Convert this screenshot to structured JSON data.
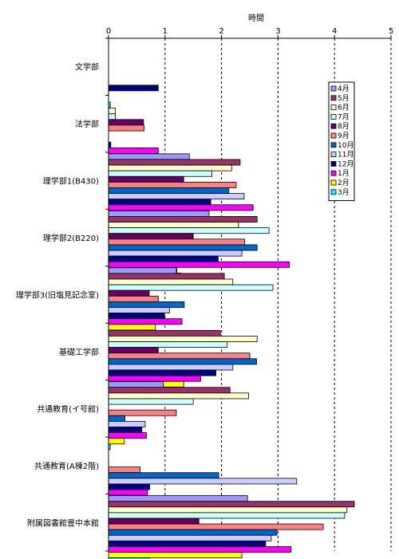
{
  "chart_data": {
    "type": "bar",
    "orientation": "horizontal",
    "title": "時間",
    "xlim": [
      0,
      5
    ],
    "xticks": [
      "0",
      "1",
      "2",
      "3",
      "4",
      "5"
    ],
    "grid": "vertical dashed",
    "legend_position": "right",
    "categories": [
      "文学部",
      "法学部",
      "理学部1(B430)",
      "理学部2(B220)",
      "理学部3(旧塩見記念室)",
      "基礎工学部",
      "共通教育(イ号館)",
      "共通教育(A棟2階)",
      "附属図書館豊中本館"
    ],
    "series": [
      {
        "name": "4月",
        "color": "#9999ff",
        "values": [
          0,
          0,
          1.43,
          1.78,
          1.2,
          0,
          0.97,
          0,
          2.46
        ]
      },
      {
        "name": "5月",
        "color": "#993366",
        "values": [
          0,
          0,
          2.33,
          2.63,
          2.05,
          1.98,
          2.15,
          0,
          4.35
        ]
      },
      {
        "name": "6月",
        "color": "#ffffcc",
        "values": [
          0,
          0.12,
          2.18,
          2.3,
          2.2,
          2.63,
          2.48,
          0,
          4.22
        ]
      },
      {
        "name": "7月",
        "color": "#ccffff",
        "values": [
          0,
          0.12,
          1.83,
          2.84,
          2.91,
          2.1,
          1.5,
          0,
          4.18
        ]
      },
      {
        "name": "8月",
        "color": "#660066",
        "values": [
          0,
          0.62,
          1.33,
          1.5,
          0.72,
          0.88,
          0,
          0,
          1.6
        ]
      },
      {
        "name": "9月",
        "color": "#ff8080",
        "values": [
          0,
          0.63,
          2.26,
          2.41,
          0.88,
          2.5,
          1.2,
          0.56,
          3.8
        ]
      },
      {
        "name": "10月",
        "color": "#0066cc",
        "values": [
          0,
          0,
          2.13,
          2.63,
          1.34,
          2.62,
          0.29,
          1.95,
          2.98
        ]
      },
      {
        "name": "11月",
        "color": "#ccccff",
        "values": [
          0,
          0,
          2.4,
          2.36,
          1.08,
          2.2,
          0.65,
          3.33,
          2.88
        ]
      },
      {
        "name": "12月",
        "color": "#000080",
        "values": [
          0.88,
          0.04,
          1.81,
          1.94,
          0.99,
          1.9,
          0.59,
          0.73,
          2.78
        ]
      },
      {
        "name": "1月",
        "color": "#ff00ff",
        "values": [
          0,
          0.88,
          2.56,
          3.2,
          1.3,
          1.63,
          0.67,
          0.69,
          3.23
        ]
      },
      {
        "name": "2月",
        "color": "#ffff00",
        "values": [
          0,
          0,
          1.3,
          1.21,
          0.83,
          1.33,
          0.28,
          0.31,
          2.36
        ]
      },
      {
        "name": "3月",
        "color": "#00ffff",
        "values": [
          0.03,
          0.1,
          0.69,
          1.28,
          0.47,
          0.98,
          0.03,
          0,
          0.72
        ]
      }
    ]
  }
}
